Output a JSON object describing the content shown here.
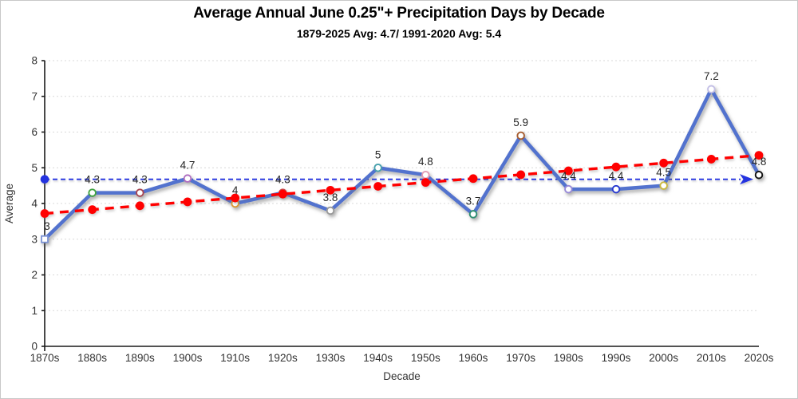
{
  "chart_data": {
    "type": "line",
    "title": "Average Annual June 0.25\"+ Precipitation Days by Decade",
    "subtitle": "1879-2025 Avg: 4.7/ 1991-2020 Avg: 5.4",
    "xlabel": "Decade",
    "ylabel": "Average",
    "ylim": [
      0,
      8
    ],
    "yticks": [
      0,
      1,
      2,
      3,
      4,
      5,
      6,
      7,
      8
    ],
    "grid": "horizontal-dotted",
    "legend": "none",
    "categories": [
      "1870s",
      "1880s",
      "1890s",
      "1900s",
      "1910s",
      "1920s",
      "1930s",
      "1940s",
      "1950s",
      "1960s",
      "1970s",
      "1980s",
      "1990s",
      "2000s",
      "2010s",
      "2020s"
    ],
    "series": [
      {
        "name": "decade-average",
        "type": "line",
        "color": "#5272CE",
        "values": [
          3,
          4.3,
          4.3,
          4.7,
          4,
          4.3,
          3.8,
          5,
          4.8,
          3.7,
          5.9,
          4.4,
          4.4,
          4.5,
          7.2,
          4.8
        ],
        "labels": [
          "3",
          "4.3",
          "4.3",
          "4.7",
          "4",
          "4.3",
          "3.8",
          "5",
          "4.8",
          "3.7",
          "5.9",
          "4.4",
          "4.4",
          "4.5",
          "7.2",
          "4.8"
        ],
        "markers": [
          {
            "shape": "square",
            "color": "#7B92D4"
          },
          {
            "shape": "circle",
            "color": "#3FA33F"
          },
          {
            "shape": "circle",
            "color": "#A84450"
          },
          {
            "shape": "circle",
            "color": "#B06FC0"
          },
          {
            "shape": "circle",
            "color": "#DD9933"
          },
          {
            "shape": "circle",
            "color": "#CC4444"
          },
          {
            "shape": "circle",
            "color": "#999999"
          },
          {
            "shape": "circle",
            "color": "#46A0AC"
          },
          {
            "shape": "circle",
            "color": "#E39BB4"
          },
          {
            "shape": "circle",
            "color": "#2F8E72"
          },
          {
            "shape": "circle",
            "color": "#A85F32"
          },
          {
            "shape": "circle",
            "color": "#9688D8"
          },
          {
            "shape": "circle",
            "color": "#2638D0"
          },
          {
            "shape": "circle",
            "color": "#C9B83E"
          },
          {
            "shape": "circle",
            "color": "#C4C0E6"
          },
          {
            "shape": "circle",
            "color": "#111111"
          }
        ]
      },
      {
        "name": "linear-trend",
        "type": "trend",
        "color": "#FF0000",
        "style": "dashed",
        "start": 3.72,
        "end": 5.35
      },
      {
        "name": "overall-average-line",
        "type": "reference",
        "color": "#2433E0",
        "style": "dashed-arrow",
        "value": 4.7
      }
    ]
  }
}
